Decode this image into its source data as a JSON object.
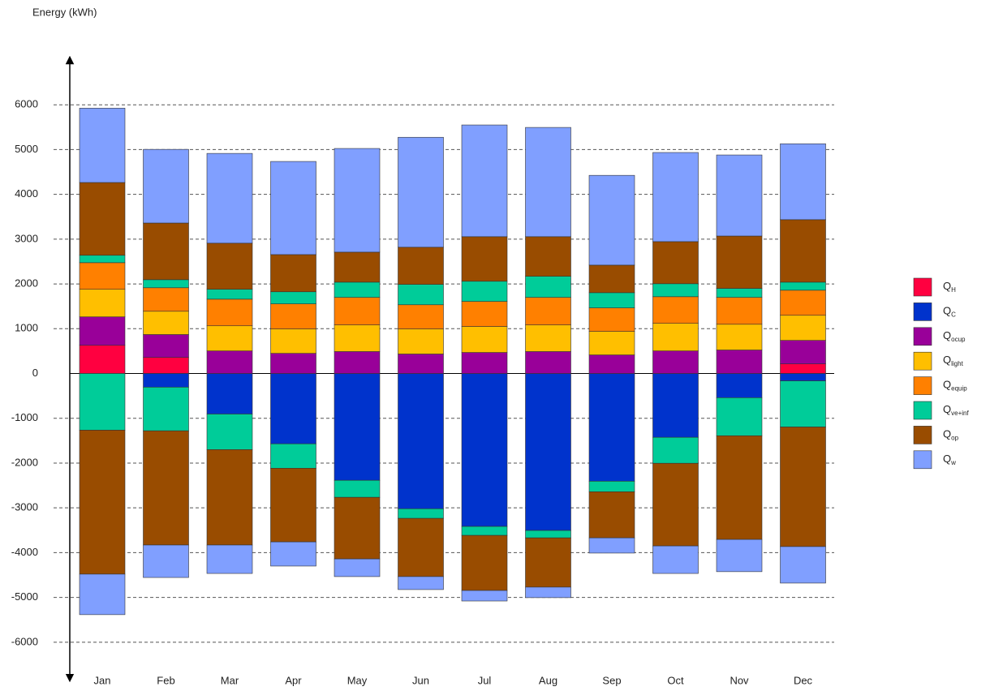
{
  "chart_data": {
    "type": "bar",
    "stacked": true,
    "y_axis_label": "Energy (kWh)",
    "categories": [
      "Jan",
      "Feb",
      "Mar",
      "Apr",
      "May",
      "Jun",
      "Jul",
      "Aug",
      "Sep",
      "Oct",
      "Nov",
      "Dec"
    ],
    "ylim": [
      -6800,
      7000
    ],
    "yticks": [
      -6000,
      -5000,
      -4000,
      -3000,
      -2000,
      -1000,
      0,
      1000,
      2000,
      3000,
      4000,
      5000,
      6000
    ],
    "grid": true,
    "legend": "right",
    "series": [
      {
        "name": "Q",
        "subscript": "H",
        "color": "#ff0040",
        "values": [
          630,
          360,
          0,
          0,
          0,
          0,
          0,
          0,
          0,
          0,
          0,
          215
        ]
      },
      {
        "name": "Q",
        "subscript": "C",
        "color": "#0033cc",
        "values": [
          0,
          -305,
          -905,
          -1570,
          -2385,
          -3020,
          -3415,
          -3505,
          -2405,
          -1425,
          -540,
          -165
        ]
      },
      {
        "name": "Q",
        "subscript": "ocup",
        "color": "#990099",
        "values": [
          635,
          510,
          505,
          450,
          490,
          435,
          470,
          490,
          415,
          505,
          525,
          525
        ]
      },
      {
        "name": "Q",
        "subscript": "light",
        "color": "#ffbf00",
        "values": [
          615,
          520,
          560,
          545,
          595,
          560,
          580,
          595,
          525,
          615,
          575,
          560
        ]
      },
      {
        "name": "Q",
        "subscript": "equip",
        "color": "#ff8000",
        "values": [
          595,
          525,
          595,
          560,
          615,
          540,
          560,
          615,
          525,
          595,
          600,
          560
        ]
      },
      {
        "name": "Q",
        "subscript": "ve+inf",
        "color": "#00cc99",
        "values": [
          165,
          180,
          220,
          270,
          340,
          455,
          450,
          470,
          340,
          290,
          200,
          180
        ],
        "losses": [
          -1265,
          -975,
          -795,
          -545,
          -380,
          -215,
          -200,
          -165,
          -235,
          -580,
          -850,
          -1030
        ]
      },
      {
        "name": "Q",
        "subscript": "op",
        "color": "#994c00",
        "values": [
          1625,
          1265,
          1030,
          830,
          670,
          830,
          995,
          885,
          615,
          940,
          1170,
          1395
        ],
        "losses": [
          -3215,
          -2550,
          -2130,
          -1645,
          -1375,
          -1300,
          -1230,
          -1100,
          -1030,
          -1845,
          -2315,
          -2670
        ]
      },
      {
        "name": "Q",
        "subscript": "w",
        "color": "#809fff",
        "values": [
          1660,
          1645,
          2005,
          2080,
          2315,
          2455,
          2495,
          2440,
          2005,
          1990,
          1810,
          1695
        ],
        "losses": [
          -905,
          -725,
          -635,
          -540,
          -395,
          -290,
          -235,
          -235,
          -340,
          -615,
          -720,
          -815
        ]
      }
    ]
  }
}
